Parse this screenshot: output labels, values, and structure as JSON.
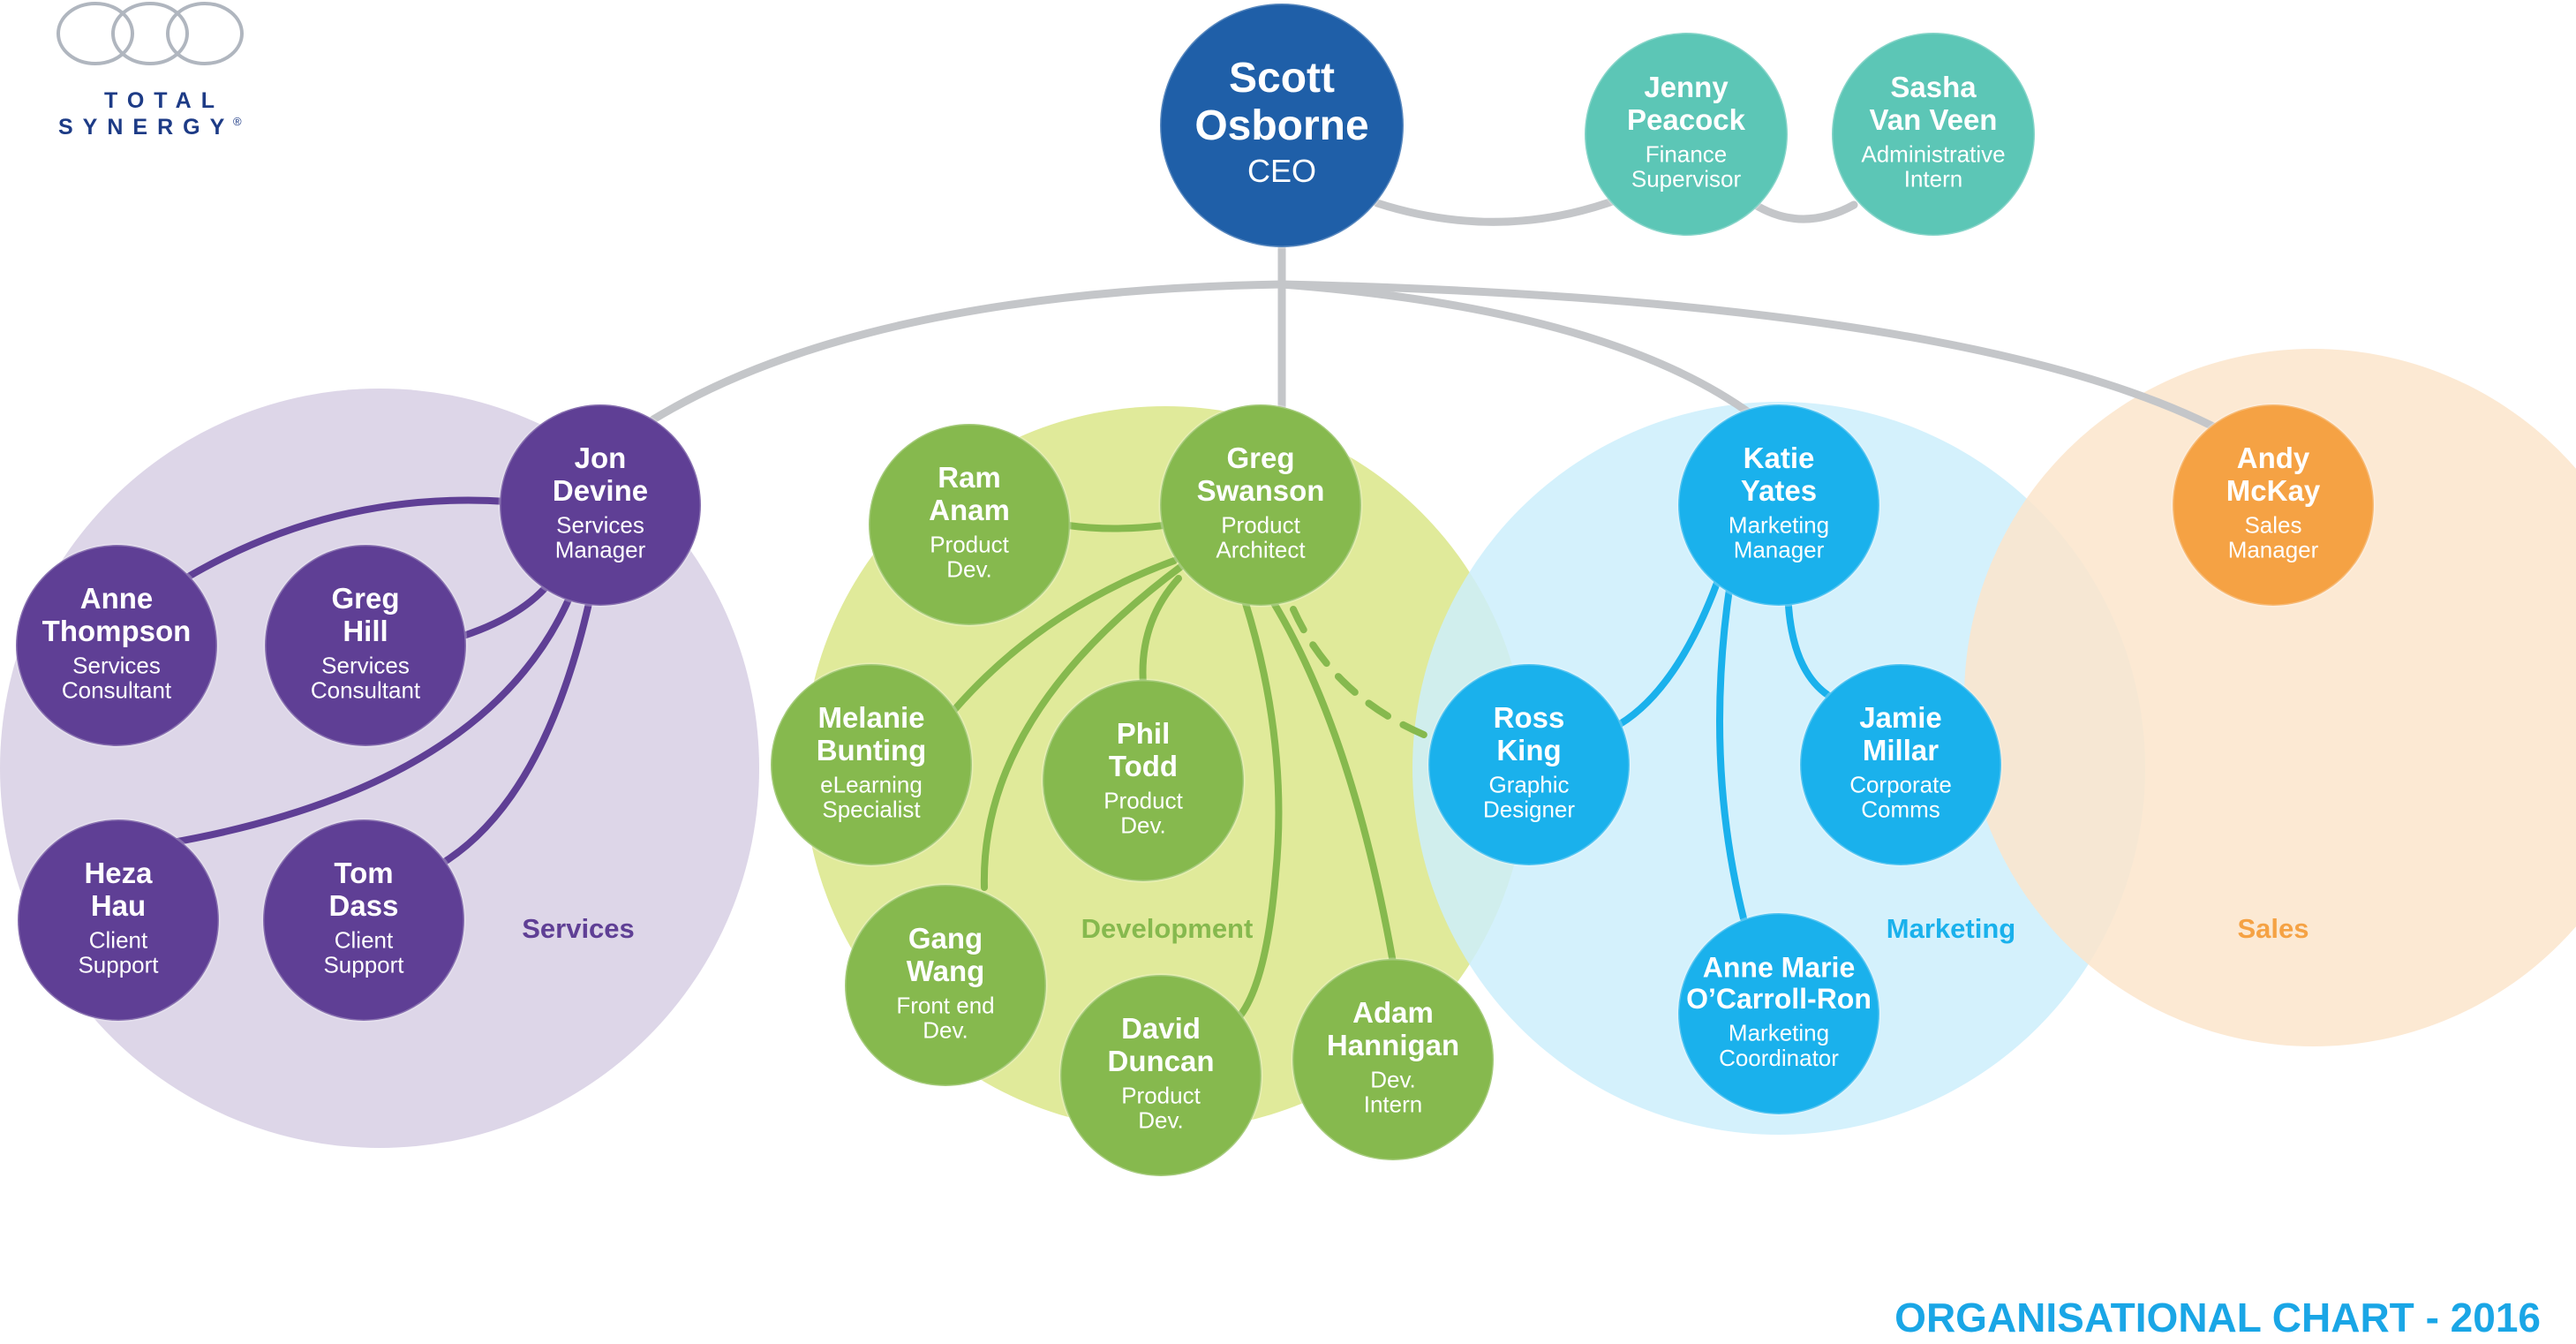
{
  "brand": {
    "line1": "TOTAL",
    "line2": "SYNERGY",
    "mark": "®",
    "color": "#1d3b86"
  },
  "footer_title": "ORGANISATIONAL CHART - 2016",
  "colors": {
    "ceo": "#1f5fa8",
    "admin": "#5cc6b6",
    "services": "#5f3f95",
    "services_bg": "#ddd6e8",
    "development": "#86b94e",
    "development_bg": "#e0ea9a",
    "marketing": "#1ab1ec",
    "marketing_bg": "#cdeefb",
    "sales": "#f5a244",
    "sales_bg": "#fbe5cb",
    "line": "#c4c6c9"
  },
  "departments": {
    "services": "Services",
    "development": "Development",
    "marketing": "Marketing",
    "sales": "Sales"
  },
  "people": {
    "scott": {
      "name": [
        "Scott",
        "Osborne"
      ],
      "role": [
        "CEO"
      ]
    },
    "jenny": {
      "name": [
        "Jenny",
        "Peacock"
      ],
      "role": [
        "Finance",
        "Supervisor"
      ]
    },
    "sasha": {
      "name": [
        "Sasha",
        "Van Veen"
      ],
      "role": [
        "Administrative",
        "Intern"
      ]
    },
    "jon": {
      "name": [
        "Jon",
        "Devine"
      ],
      "role": [
        "Services",
        "Manager"
      ]
    },
    "anne_t": {
      "name": [
        "Anne",
        "Thompson"
      ],
      "role": [
        "Services",
        "Consultant"
      ]
    },
    "greg_h": {
      "name": [
        "Greg",
        "Hill"
      ],
      "role": [
        "Services",
        "Consultant"
      ]
    },
    "heza": {
      "name": [
        "Heza",
        "Hau"
      ],
      "role": [
        "Client",
        "Support"
      ]
    },
    "tom": {
      "name": [
        "Tom",
        "Dass"
      ],
      "role": [
        "Client",
        "Support"
      ]
    },
    "ram": {
      "name": [
        "Ram",
        "Anam"
      ],
      "role": [
        "Product",
        "Dev."
      ]
    },
    "greg_s": {
      "name": [
        "Greg",
        "Swanson"
      ],
      "role": [
        "Product",
        "Architect"
      ]
    },
    "melanie": {
      "name": [
        "Melanie",
        "Bunting"
      ],
      "role": [
        "eLearning",
        "Specialist"
      ]
    },
    "phil": {
      "name": [
        "Phil",
        "Todd"
      ],
      "role": [
        "Product",
        "Dev."
      ]
    },
    "gang": {
      "name": [
        "Gang",
        "Wang"
      ],
      "role": [
        "Front end",
        "Dev."
      ]
    },
    "david": {
      "name": [
        "David",
        "Duncan"
      ],
      "role": [
        "Product",
        "Dev."
      ]
    },
    "adam": {
      "name": [
        "Adam",
        "Hannigan"
      ],
      "role": [
        "Dev.",
        "Intern"
      ]
    },
    "katie": {
      "name": [
        "Katie",
        "Yates"
      ],
      "role": [
        "Marketing",
        "Manager"
      ]
    },
    "ross": {
      "name": [
        "Ross",
        "King"
      ],
      "role": [
        "Graphic",
        "Designer"
      ]
    },
    "jamie": {
      "name": [
        "Jamie",
        "Millar"
      ],
      "role": [
        "Corporate",
        "Comms"
      ]
    },
    "annemarie": {
      "name": [
        "Anne Marie",
        "O’Carroll-Ron"
      ],
      "role": [
        "Marketing",
        "Coordinator"
      ]
    },
    "andy": {
      "name": [
        "Andy",
        "McKay"
      ],
      "role": [
        "Sales",
        "Manager"
      ]
    }
  }
}
